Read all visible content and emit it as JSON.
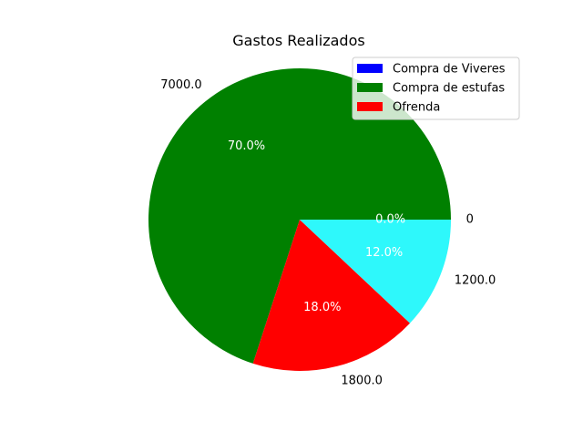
{
  "chart_data": {
    "type": "pie",
    "title": "Gastos Realizados",
    "slices": [
      {
        "label": "Compra de Viveres",
        "value": 0,
        "value_label": "0",
        "percent_label": "0.0%",
        "color": "#0000ff"
      },
      {
        "label": "Compra de estufas",
        "value": 7000,
        "value_label": "7000.0",
        "percent_label": "70.0%",
        "color": "#008000"
      },
      {
        "label": "Ofrenda",
        "value": 1800,
        "value_label": "1800.0",
        "percent_label": "18.0%",
        "color": "#ff0000"
      },
      {
        "label": "",
        "value": 1200,
        "value_label": "1200.0",
        "percent_label": "12.0%",
        "color": "#2ef8fb"
      }
    ],
    "legend": {
      "placement": "upper-right",
      "entries": [
        "Compra de Viveres",
        "Compra de estufas",
        "Ofrenda"
      ]
    },
    "start_angle": 0,
    "direction": "counterclockwise"
  }
}
